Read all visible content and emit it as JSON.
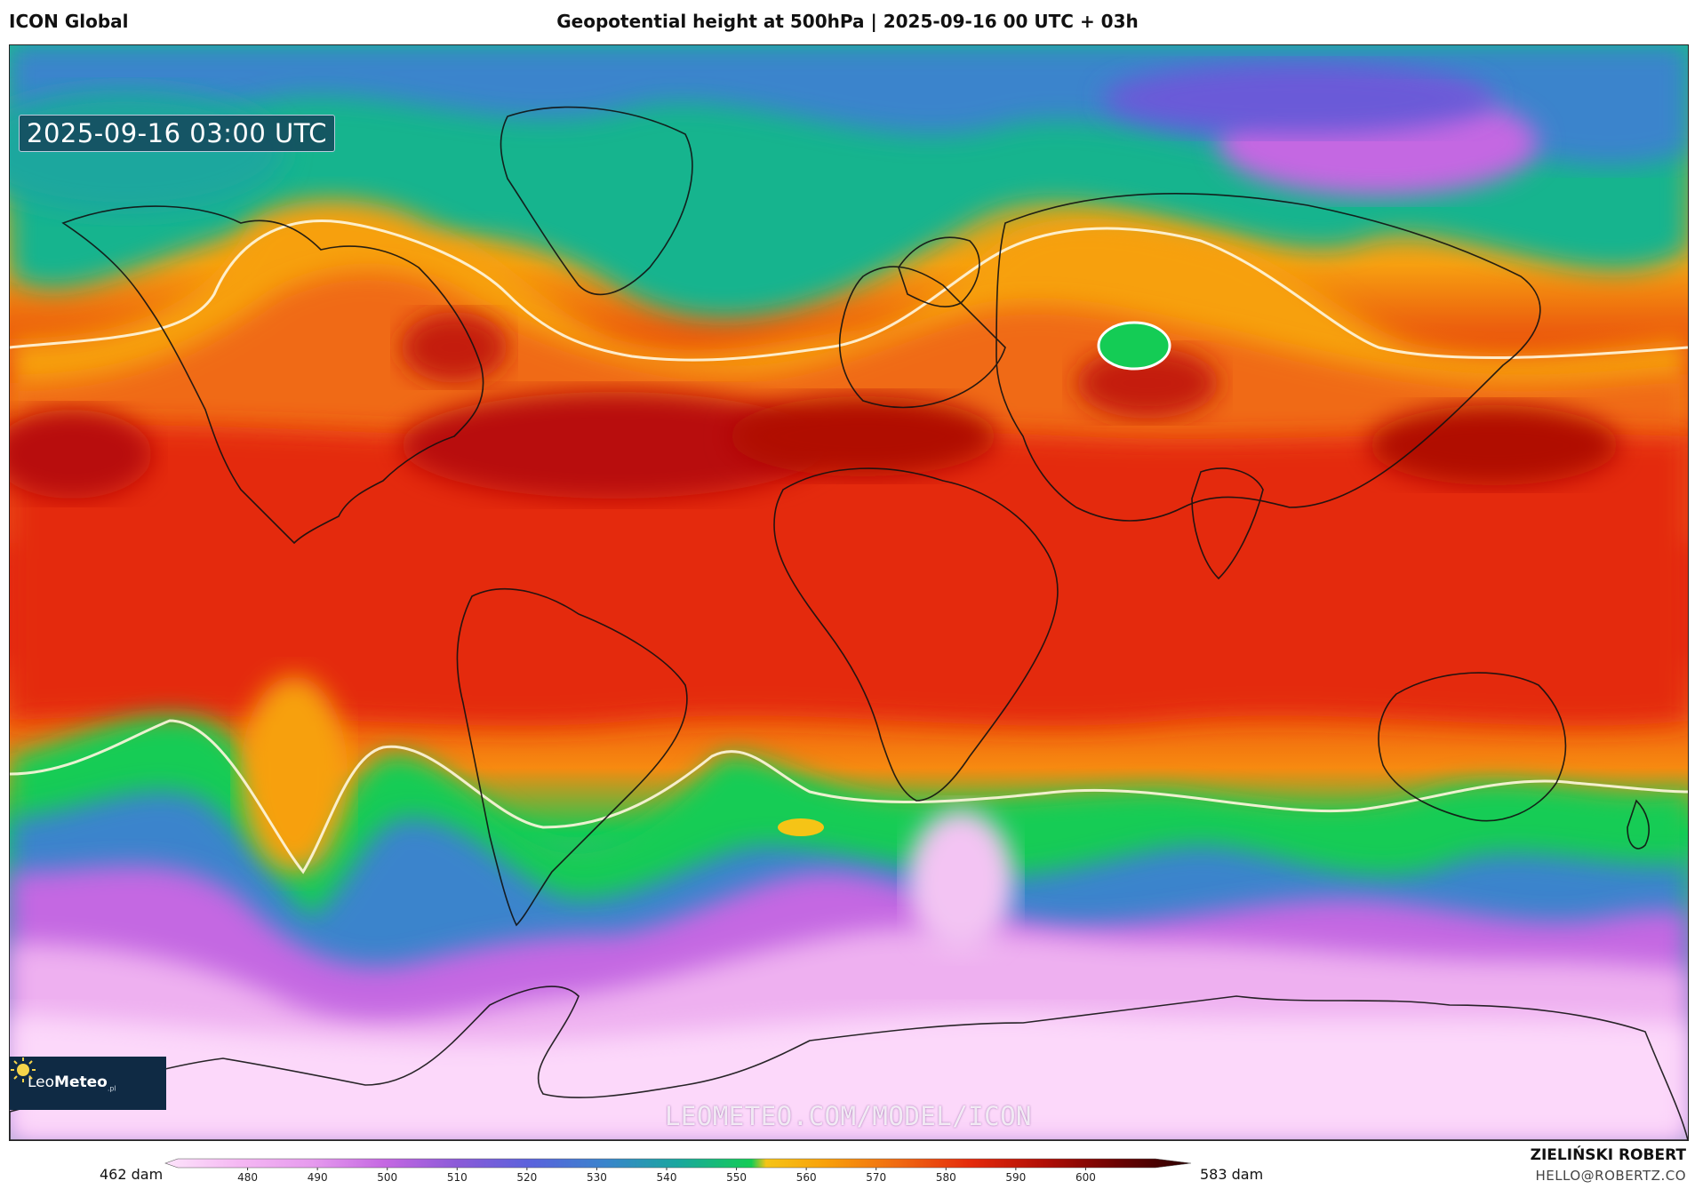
{
  "header": {
    "model": "ICON Global",
    "title": "Geopotential height at 500hPa | 2025-09-16 00 UTC + 03h"
  },
  "map": {
    "valid_time": "2025-09-16 03:00 UTC",
    "watermark": "LEOMETEO.COM/MODEL/ICON"
  },
  "branding": {
    "logo_icon": "sun-icon",
    "logo_name_light": "Leo",
    "logo_name_bold": "Meteo",
    "logo_suffix": ".pl",
    "author": "ZIELIŃSKI ROBERT",
    "email": "HELLO@ROBERTZ.CO"
  },
  "legend": {
    "min_label": "462 dam",
    "max_label": "583 dam",
    "ticks": [
      "480",
      "490",
      "500",
      "510",
      "520",
      "530",
      "540",
      "550",
      "560",
      "570",
      "580",
      "590",
      "600"
    ],
    "colors": {
      "470": "#fde4fb",
      "480": "#f5b8f3",
      "490": "#e69aee",
      "500": "#c467e2",
      "510": "#8a5ad8",
      "520": "#5a63dc",
      "530": "#3a84cc",
      "540": "#1aa79e",
      "550": "#14cc55",
      "552": "#f5c416",
      "560": "#f8a10a",
      "570": "#f06a12",
      "580": "#e42a0c",
      "590": "#b00e06",
      "600": "#6a0202",
      "610": "#2a0000"
    }
  }
}
